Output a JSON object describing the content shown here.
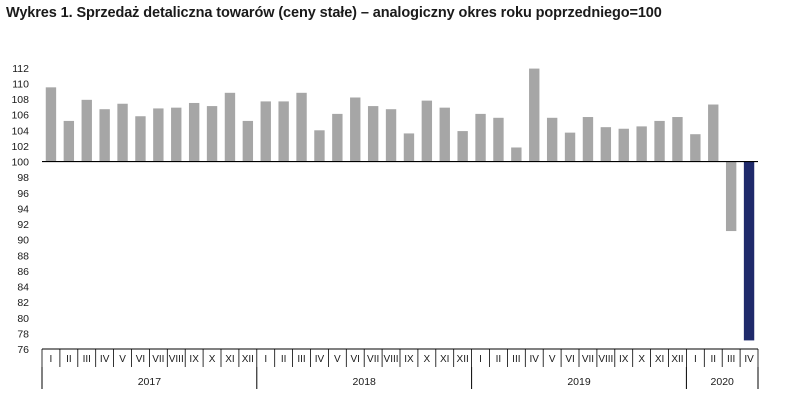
{
  "chart_data": {
    "type": "bar",
    "title": "Wykres 1. Sprzedaż detaliczna towarów (ceny stałe) – analogiczny okres roku poprzedniego=100",
    "xlabel": "",
    "ylabel": "",
    "ylim": [
      76,
      113
    ],
    "y_ticks": [
      76,
      78,
      80,
      82,
      84,
      86,
      88,
      90,
      92,
      94,
      96,
      98,
      100,
      102,
      104,
      106,
      108,
      110,
      112
    ],
    "baseline": 100,
    "grid": false,
    "legend": "none",
    "colors": {
      "default": "#a6a6a6",
      "highlight": "#1f2a6b"
    },
    "highlight_index": 39,
    "categories": [
      "I",
      "II",
      "III",
      "IV",
      "V",
      "VI",
      "VII",
      "VIII",
      "IX",
      "X",
      "XI",
      "XII",
      "I",
      "II",
      "III",
      "IV",
      "V",
      "VI",
      "VII",
      "VIII",
      "IX",
      "X",
      "XI",
      "XII",
      "I",
      "II",
      "III",
      "IV",
      "V",
      "VI",
      "VII",
      "VIII",
      "IX",
      "X",
      "XI",
      "XII",
      "I",
      "II",
      "III",
      "IV"
    ],
    "years": [
      {
        "label": "2017",
        "count": 12
      },
      {
        "label": "2018",
        "count": 12
      },
      {
        "label": "2019",
        "count": 12
      },
      {
        "label": "2020",
        "count": 4
      }
    ],
    "values": [
      109.5,
      105.2,
      107.9,
      106.7,
      107.4,
      105.8,
      106.8,
      106.9,
      107.5,
      107.1,
      108.8,
      105.2,
      107.7,
      107.7,
      108.8,
      104.0,
      106.1,
      108.2,
      107.1,
      106.7,
      103.6,
      107.8,
      106.9,
      103.9,
      106.1,
      105.6,
      101.8,
      111.9,
      105.6,
      103.7,
      105.7,
      104.4,
      104.2,
      104.5,
      105.2,
      105.7,
      103.5,
      107.3,
      91.1,
      77.1
    ]
  }
}
